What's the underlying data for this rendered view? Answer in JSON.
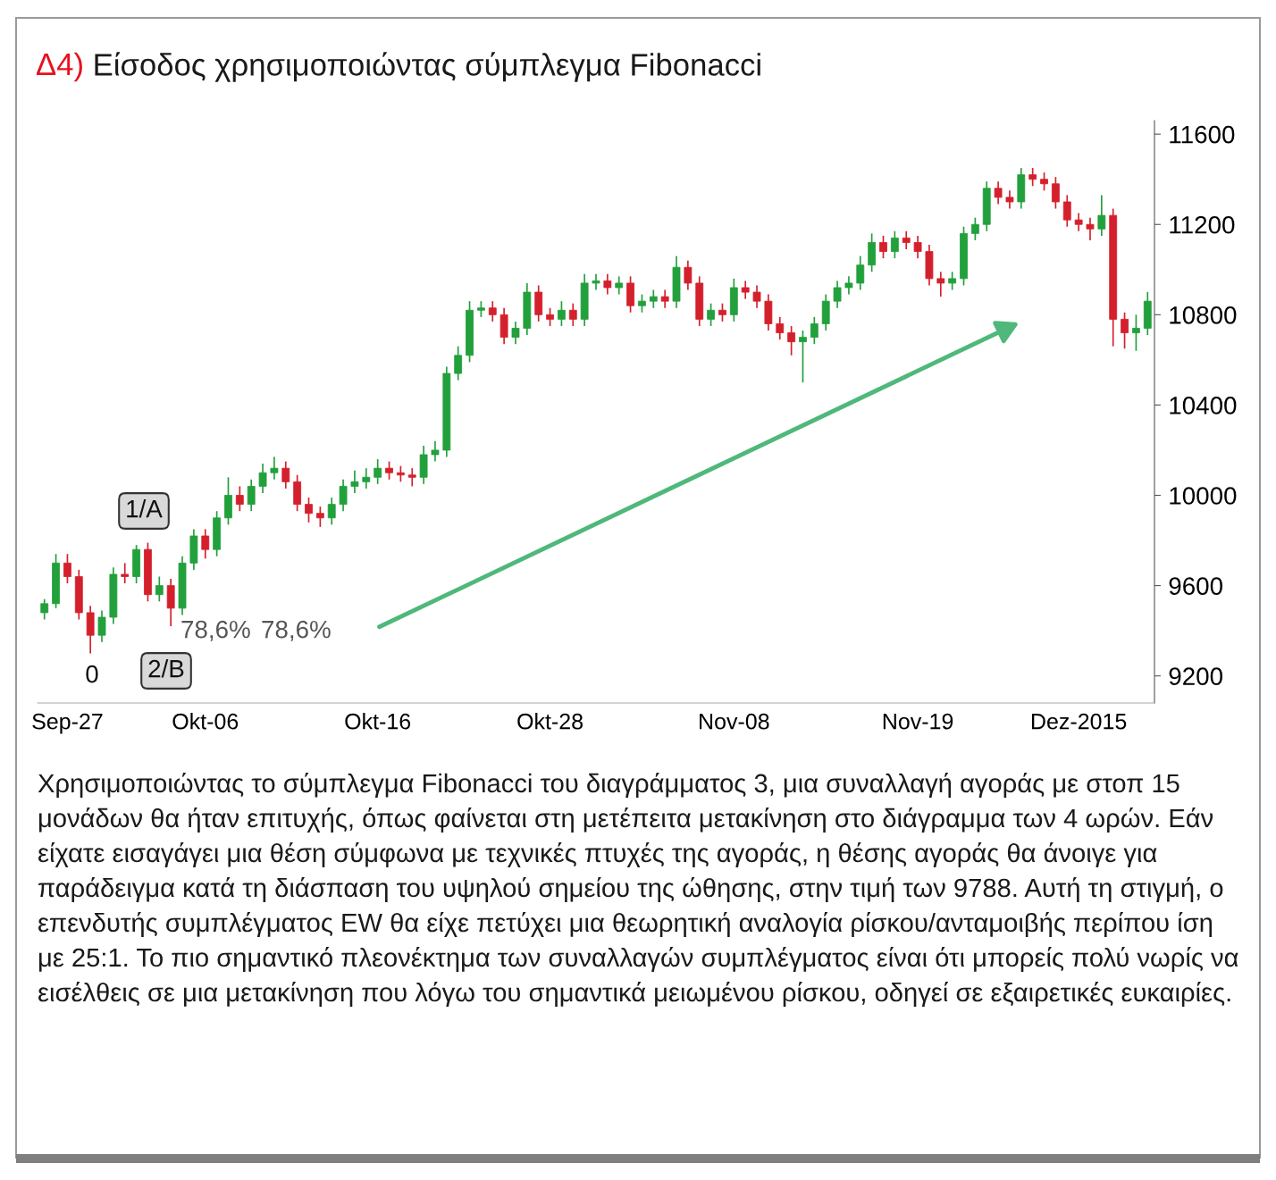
{
  "chart_data": {
    "type": "candlestick",
    "title": "Δ4) Είσοδος χρησιμοποιώντας σύμπλεγμα Fibonacci",
    "categories": [
      null,
      null,
      "Sep-27",
      null,
      null,
      null,
      null,
      null,
      null,
      null,
      null,
      null,
      null,
      null,
      "Okt-06",
      null,
      null,
      null,
      null,
      null,
      null,
      null,
      null,
      null,
      null,
      null,
      null,
      null,
      null,
      "Okt-16",
      null,
      null,
      null,
      null,
      null,
      null,
      null,
      null,
      null,
      null,
      null,
      null,
      null,
      null,
      "Okt-28",
      null,
      null,
      null,
      null,
      null,
      null,
      null,
      null,
      null,
      null,
      null,
      null,
      null,
      null,
      null,
      "Nov-08",
      null,
      null,
      null,
      null,
      null,
      null,
      null,
      null,
      null,
      null,
      null,
      null,
      null,
      null,
      null,
      "Nov-19",
      null,
      null,
      null,
      null,
      null,
      null,
      null,
      null,
      null,
      null,
      null,
      null,
      null,
      "Dez-2015",
      null,
      null,
      null,
      null,
      null,
      null
    ],
    "ohlc": [
      [
        9480,
        9540,
        9450,
        9520
      ],
      [
        9520,
        9740,
        9500,
        9700
      ],
      [
        9700,
        9740,
        9610,
        9640
      ],
      [
        9640,
        9670,
        9450,
        9480
      ],
      [
        9480,
        9510,
        9300,
        9380
      ],
      [
        9380,
        9490,
        9350,
        9460
      ],
      [
        9460,
        9680,
        9430,
        9650
      ],
      [
        9650,
        9700,
        9610,
        9640
      ],
      [
        9640,
        9780,
        9610,
        9760
      ],
      [
        9760,
        9790,
        9530,
        9560
      ],
      [
        9560,
        9640,
        9530,
        9600
      ],
      [
        9600,
        9630,
        9420,
        9500
      ],
      [
        9500,
        9730,
        9470,
        9700
      ],
      [
        9700,
        9850,
        9670,
        9820
      ],
      [
        9820,
        9850,
        9720,
        9760
      ],
      [
        9760,
        9930,
        9730,
        9900
      ],
      [
        9900,
        10080,
        9870,
        10000
      ],
      [
        10000,
        10040,
        9930,
        9960
      ],
      [
        9960,
        10070,
        9930,
        10040
      ],
      [
        10040,
        10140,
        10010,
        10100
      ],
      [
        10100,
        10170,
        10070,
        10120
      ],
      [
        10120,
        10150,
        10030,
        10060
      ],
      [
        10060,
        10090,
        9930,
        9960
      ],
      [
        9960,
        9990,
        9880,
        9920
      ],
      [
        9920,
        9950,
        9860,
        9900
      ],
      [
        9900,
        9990,
        9870,
        9960
      ],
      [
        9960,
        10070,
        9930,
        10040
      ],
      [
        10040,
        10110,
        10010,
        10060
      ],
      [
        10060,
        10120,
        10030,
        10080
      ],
      [
        10080,
        10160,
        10050,
        10120
      ],
      [
        10120,
        10150,
        10070,
        10100
      ],
      [
        10100,
        10130,
        10060,
        10090
      ],
      [
        10090,
        10120,
        10040,
        10080
      ],
      [
        10080,
        10220,
        10050,
        10180
      ],
      [
        10180,
        10240,
        10150,
        10200
      ],
      [
        10200,
        10570,
        10170,
        10540
      ],
      [
        10540,
        10660,
        10510,
        10620
      ],
      [
        10620,
        10860,
        10590,
        10820
      ],
      [
        10820,
        10860,
        10790,
        10830
      ],
      [
        10830,
        10860,
        10770,
        10800
      ],
      [
        10800,
        10830,
        10670,
        10700
      ],
      [
        10700,
        10770,
        10670,
        10740
      ],
      [
        10740,
        10940,
        10710,
        10900
      ],
      [
        10900,
        10930,
        10770,
        10800
      ],
      [
        10800,
        10830,
        10750,
        10780
      ],
      [
        10780,
        10860,
        10750,
        10820
      ],
      [
        10820,
        10850,
        10750,
        10780
      ],
      [
        10780,
        10980,
        10750,
        10940
      ],
      [
        10940,
        10980,
        10910,
        10950
      ],
      [
        10950,
        10980,
        10890,
        10920
      ],
      [
        10920,
        10970,
        10890,
        10940
      ],
      [
        10940,
        10970,
        10810,
        10840
      ],
      [
        10840,
        10890,
        10810,
        10860
      ],
      [
        10860,
        10910,
        10830,
        10880
      ],
      [
        10880,
        10910,
        10830,
        10860
      ],
      [
        10860,
        11060,
        10830,
        11010
      ],
      [
        11010,
        11040,
        10910,
        10940
      ],
      [
        10940,
        10970,
        10750,
        10780
      ],
      [
        10780,
        10850,
        10750,
        10820
      ],
      [
        10820,
        10850,
        10770,
        10800
      ],
      [
        10800,
        10960,
        10770,
        10920
      ],
      [
        10920,
        10950,
        10870,
        10900
      ],
      [
        10900,
        10930,
        10830,
        10860
      ],
      [
        10860,
        10890,
        10730,
        10760
      ],
      [
        10760,
        10790,
        10690,
        10720
      ],
      [
        10720,
        10750,
        10620,
        10680
      ],
      [
        10680,
        10730,
        10500,
        10700
      ],
      [
        10700,
        10790,
        10670,
        10760
      ],
      [
        10760,
        10890,
        10730,
        10860
      ],
      [
        10860,
        10950,
        10830,
        10920
      ],
      [
        10920,
        10970,
        10890,
        10940
      ],
      [
        10940,
        11060,
        10910,
        11020
      ],
      [
        11020,
        11160,
        10990,
        11120
      ],
      [
        11120,
        11150,
        11050,
        11080
      ],
      [
        11080,
        11170,
        11050,
        11140
      ],
      [
        11140,
        11170,
        11090,
        11120
      ],
      [
        11120,
        11150,
        11050,
        11080
      ],
      [
        11080,
        11110,
        10930,
        10960
      ],
      [
        10960,
        10990,
        10880,
        10940
      ],
      [
        10940,
        10990,
        10910,
        10960
      ],
      [
        10960,
        11190,
        10930,
        11160
      ],
      [
        11160,
        11230,
        11130,
        11200
      ],
      [
        11200,
        11390,
        11170,
        11360
      ],
      [
        11360,
        11390,
        11290,
        11320
      ],
      [
        11320,
        11350,
        11270,
        11300
      ],
      [
        11300,
        11450,
        11270,
        11420
      ],
      [
        11420,
        11450,
        11370,
        11400
      ],
      [
        11400,
        11430,
        11350,
        11380
      ],
      [
        11380,
        11410,
        11270,
        11300
      ],
      [
        11300,
        11330,
        11190,
        11220
      ],
      [
        11220,
        11250,
        11170,
        11200
      ],
      [
        11200,
        11230,
        11130,
        11180
      ],
      [
        11180,
        11330,
        11150,
        11240
      ],
      [
        11240,
        11270,
        10660,
        10780
      ],
      [
        10780,
        10810,
        10650,
        10720
      ],
      [
        10720,
        10800,
        10640,
        10740
      ],
      [
        10740,
        10900,
        10710,
        10860
      ]
    ],
    "colors": [
      "#22a03c",
      "#22a03c",
      "#d4202c",
      "#d4202c",
      "#d4202c",
      "#22a03c",
      "#22a03c",
      "#d4202c",
      "#22a03c",
      "#d4202c",
      "#22a03c",
      "#d4202c",
      "#22a03c",
      "#22a03c",
      "#d4202c",
      "#22a03c",
      "#22a03c",
      "#d4202c",
      "#22a03c",
      "#22a03c",
      "#22a03c",
      "#d4202c",
      "#d4202c",
      "#d4202c",
      "#d4202c",
      "#22a03c",
      "#22a03c",
      "#22a03c",
      "#22a03c",
      "#22a03c",
      "#d4202c",
      "#d4202c",
      "#d4202c",
      "#22a03c",
      "#22a03c",
      "#22a03c",
      "#22a03c",
      "#22a03c",
      "#22a03c",
      "#d4202c",
      "#d4202c",
      "#22a03c",
      "#22a03c",
      "#d4202c",
      "#d4202c",
      "#22a03c",
      "#d4202c",
      "#22a03c",
      "#22a03c",
      "#d4202c",
      "#22a03c",
      "#d4202c",
      "#22a03c",
      "#22a03c",
      "#d4202c",
      "#22a03c",
      "#d4202c",
      "#d4202c",
      "#22a03c",
      "#d4202c",
      "#22a03c",
      "#d4202c",
      "#d4202c",
      "#d4202c",
      "#d4202c",
      "#d4202c",
      "#22a03c",
      "#22a03c",
      "#22a03c",
      "#22a03c",
      "#22a03c",
      "#22a03c",
      "#22a03c",
      "#d4202c",
      "#22a03c",
      "#d4202c",
      "#d4202c",
      "#d4202c",
      "#d4202c",
      "#22a03c",
      "#22a03c",
      "#22a03c",
      "#22a03c",
      "#d4202c",
      "#d4202c",
      "#22a03c",
      "#d4202c",
      "#d4202c",
      "#d4202c",
      "#d4202c",
      "#d4202c",
      "#d4202c",
      "#22a03c",
      "#d4202c",
      "#d4202c",
      "#22a03c",
      "#22a03c"
    ],
    "ylim": [
      9080,
      11660
    ],
    "yticks": [
      9200,
      9600,
      10000,
      10400,
      10800,
      11200,
      11600
    ],
    "grid": false,
    "legend": false,
    "annotations": [
      "1/A",
      "0",
      "2/B",
      "78,6%",
      "78,6%",
      "Χρησιμοποιώντας το σύμπλεγμα Fibonacci του διαγράμματος 3, μια συναλλαγή αγοράς με στοπ 15 μονάδων θα ήταν επιτυχής, όπως φαίνεται στη μετέπειτα μετακίνηση στο διάγραμμα των 4 ωρών. Εάν είχατε εισαγάγει μια θέση σύμφωνα με τεχνικές πτυχές της αγοράς, η θέσης αγοράς θα άνοιγε για παράδειγμα κατά τη διάσπαση του υψηλού σημείου της ώθησης, στην τιμή των 9788. Αυτή τη στιγμή, ο επενδυτής συμπλέγματος EW θα είχε πετύχει μια θεωρητική αναλογία ρίσκου/ανταμοιβής περίπου ίση με 25:1. Το πιο σημαντικό πλεονέκτημα των συναλλαγών συμπλέγματος είναι ότι μπορείς πολύ νωρίς να εισέλθεις σε μια μετακίνηση που λόγω του σημαντικά μειωμένου ρίσκου, οδηγεί σε εξαιρετικές ευκαιρίες."
    ]
  }
}
